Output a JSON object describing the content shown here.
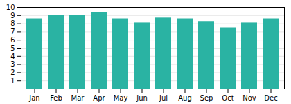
{
  "chart_data": {
    "type": "bar",
    "categories": [
      "Jan",
      "Feb",
      "Mar",
      "Apr",
      "May",
      "Jun",
      "Jul",
      "Aug",
      "Sep",
      "Oct",
      "Nov",
      "Dec"
    ],
    "values": [
      8.6,
      9.0,
      9.0,
      9.4,
      8.6,
      8.1,
      8.7,
      8.6,
      8.2,
      7.5,
      8.1,
      8.6
    ],
    "color": "#2ab3a3",
    "ylim": [
      0,
      10
    ],
    "yticks": [
      1,
      2,
      3,
      4,
      5,
      6,
      7,
      8,
      9,
      10
    ],
    "grid": true
  }
}
